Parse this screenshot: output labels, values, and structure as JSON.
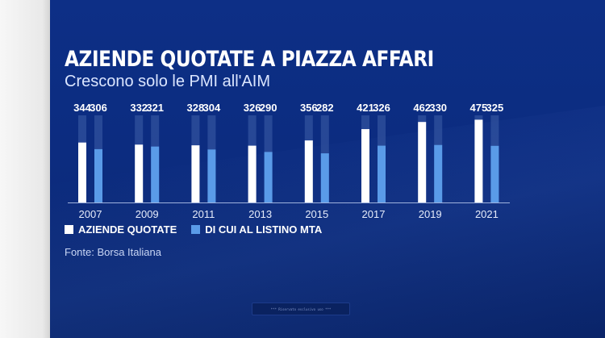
{
  "header": {
    "title": "AZIENDE QUOTATE A PIAZZA AFFARI",
    "subtitle": "Crescono solo le PMI all'AIM"
  },
  "legend": {
    "series1_label": "AZIENDE QUOTATE",
    "series2_label": "DI CUI AL LISTINO MTA"
  },
  "source": "Fonte: Borsa Italiana",
  "watermark_text": "*** Riservato esclusivo uso ***",
  "colors": {
    "background": "#0c2c80",
    "series1": "#ffffff",
    "series2": "#5a9be8",
    "track": "#3e5ea8",
    "axis": "#9fb2dd"
  },
  "chart_data": {
    "type": "bar",
    "categories": [
      "2007",
      "2009",
      "2011",
      "2013",
      "2015",
      "2017",
      "2019",
      "2021"
    ],
    "series": [
      {
        "name": "AZIENDE QUOTATE",
        "values": [
          344,
          332,
          328,
          326,
          356,
          421,
          462,
          475
        ]
      },
      {
        "name": "DI CUI AL LISTINO MTA",
        "values": [
          306,
          321,
          304,
          290,
          282,
          326,
          330,
          325
        ]
      }
    ],
    "ylim": [
      0,
      500
    ],
    "grid": false,
    "legend_position": "bottom-left",
    "data_labels": true
  }
}
